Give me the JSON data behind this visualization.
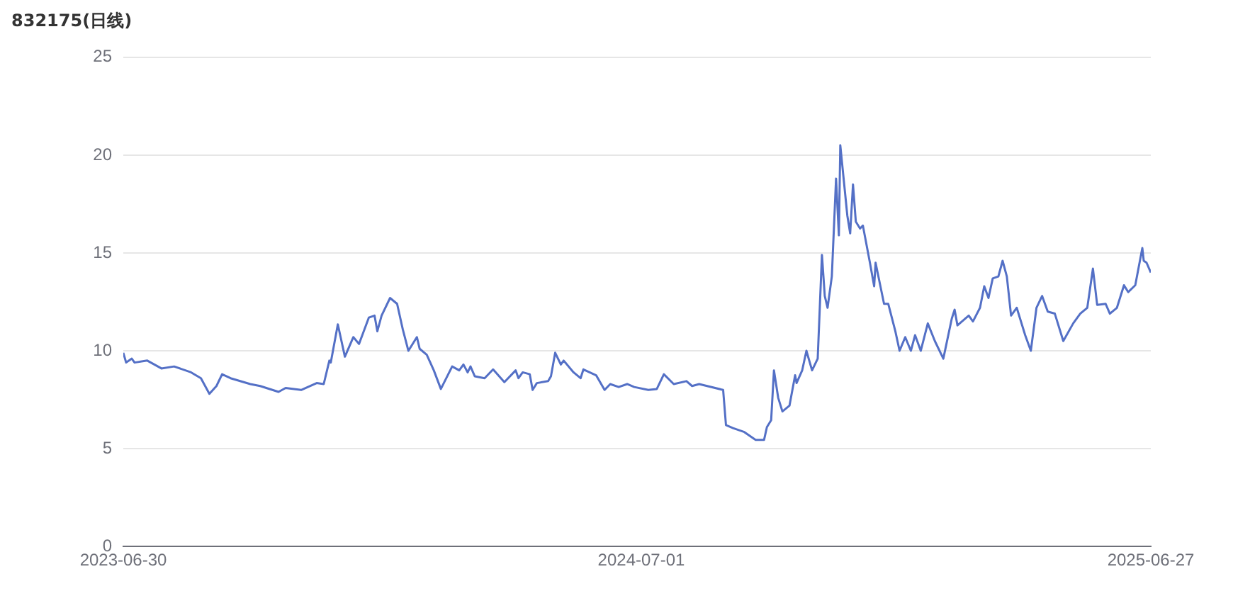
{
  "chart_data": {
    "type": "line",
    "title": "832175(日线)",
    "x": [
      "2023-06-30",
      "2023-07-02",
      "2023-07-06",
      "2023-07-08",
      "2023-07-17",
      "2023-07-27",
      "2023-08-05",
      "2023-08-17",
      "2023-08-24",
      "2023-08-30",
      "2023-09-04",
      "2023-09-08",
      "2023-09-14",
      "2023-09-28",
      "2023-10-05",
      "2023-10-18",
      "2023-10-23",
      "2023-11-03",
      "2023-11-14",
      "2023-11-19",
      "2023-11-23",
      "2023-11-24",
      "2023-11-29",
      "2023-12-04",
      "2023-12-10",
      "2023-12-14",
      "2023-12-21",
      "2023-12-25",
      "2023-12-27",
      "2023-12-30",
      "2024-01-05",
      "2024-01-10",
      "2024-01-14",
      "2024-01-18",
      "2024-01-24",
      "2024-01-26",
      "2024-01-31",
      "2024-02-05",
      "2024-02-10",
      "2024-02-18",
      "2024-02-23",
      "2024-02-26",
      "2024-02-29",
      "2024-03-02",
      "2024-03-05",
      "2024-03-12",
      "2024-03-18",
      "2024-03-26",
      "2024-04-03",
      "2024-04-05",
      "2024-04-08",
      "2024-04-13",
      "2024-04-15",
      "2024-04-18",
      "2024-04-26",
      "2024-04-28",
      "2024-05-01",
      "2024-05-05",
      "2024-05-07",
      "2024-05-14",
      "2024-05-19",
      "2024-05-21",
      "2024-05-30",
      "2024-06-05",
      "2024-06-09",
      "2024-06-15",
      "2024-06-21",
      "2024-06-26",
      "2024-07-06",
      "2024-07-12",
      "2024-07-17",
      "2024-07-24",
      "2024-08-02",
      "2024-08-06",
      "2024-08-11",
      "2024-08-28",
      "2024-08-30",
      "2024-09-04",
      "2024-09-12",
      "2024-09-20",
      "2024-09-26",
      "2024-09-28",
      "2024-10-01",
      "2024-10-03",
      "2024-10-06",
      "2024-10-09",
      "2024-10-14",
      "2024-10-18",
      "2024-10-19",
      "2024-10-23",
      "2024-10-26",
      "2024-10-30",
      "2024-11-03",
      "2024-11-06",
      "2024-11-08",
      "2024-11-10",
      "2024-11-13",
      "2024-11-16",
      "2024-11-18",
      "2024-11-19",
      "2024-11-24",
      "2024-11-26",
      "2024-11-28",
      "2024-11-30",
      "2024-12-03",
      "2024-12-05",
      "2024-12-10",
      "2024-12-13",
      "2024-12-14",
      "2024-12-20",
      "2024-12-23",
      "2024-12-28",
      "2024-12-31",
      "2025-01-04",
      "2025-01-08",
      "2025-01-11",
      "2025-01-15",
      "2025-01-20",
      "2025-01-25",
      "2025-01-31",
      "2025-02-06",
      "2025-02-08",
      "2025-02-10",
      "2025-02-18",
      "2025-02-21",
      "2025-02-26",
      "2025-03-01",
      "2025-03-04",
      "2025-03-07",
      "2025-03-11",
      "2025-03-14",
      "2025-03-17",
      "2025-03-20",
      "2025-03-24",
      "2025-03-30",
      "2025-04-03",
      "2025-04-07",
      "2025-04-11",
      "2025-04-15",
      "2025-04-20",
      "2025-04-26",
      "2025-05-03",
      "2025-05-08",
      "2025-05-13",
      "2025-05-17",
      "2025-05-20",
      "2025-05-26",
      "2025-05-29",
      "2025-06-03",
      "2025-06-08",
      "2025-06-11",
      "2025-06-16",
      "2025-06-21",
      "2025-06-22",
      "2025-06-24",
      "2025-06-27"
    ],
    "series": [
      {
        "color": "#5470c6",
        "values": [
          9.9,
          9.4,
          9.6,
          9.4,
          9.5,
          9.1,
          9.2,
          8.9,
          8.6,
          7.8,
          8.2,
          8.8,
          8.6,
          8.3,
          8.2,
          7.9,
          8.1,
          8.0,
          8.35,
          8.3,
          9.5,
          9.4,
          11.35,
          9.7,
          10.7,
          10.35,
          11.7,
          11.8,
          11.0,
          11.8,
          12.7,
          12.4,
          11.1,
          10.0,
          10.7,
          10.1,
          9.8,
          9.0,
          8.05,
          9.2,
          9.0,
          9.3,
          8.9,
          9.2,
          8.7,
          8.6,
          9.05,
          8.4,
          9.0,
          8.6,
          8.9,
          8.8,
          8.0,
          8.35,
          8.45,
          8.7,
          9.9,
          9.3,
          9.5,
          8.9,
          8.6,
          9.05,
          8.75,
          8.0,
          8.3,
          8.15,
          8.3,
          8.15,
          8.0,
          8.05,
          8.8,
          8.3,
          8.45,
          8.2,
          8.3,
          8.0,
          6.2,
          6.05,
          5.85,
          5.45,
          5.45,
          6.1,
          6.45,
          9.0,
          7.6,
          6.9,
          7.2,
          8.75,
          8.35,
          9.0,
          10.0,
          9.0,
          9.6,
          14.9,
          12.8,
          12.2,
          13.8,
          18.8,
          15.9,
          20.5,
          16.9,
          16.0,
          18.5,
          16.6,
          16.25,
          16.4,
          14.5,
          13.3,
          14.5,
          12.4,
          12.4,
          11.0,
          10.0,
          10.7,
          10.0,
          10.8,
          10.0,
          11.4,
          10.5,
          9.6,
          11.65,
          12.1,
          11.3,
          11.8,
          11.5,
          12.2,
          13.3,
          12.7,
          13.7,
          13.8,
          14.6,
          13.8,
          11.8,
          12.2,
          10.8,
          10.0,
          12.2,
          12.8,
          12.0,
          11.9,
          10.5,
          11.4,
          11.9,
          12.2,
          14.2,
          12.35,
          12.4,
          11.9,
          12.2,
          13.35,
          13.0,
          13.35,
          15.25,
          14.6,
          14.5,
          14.0
        ]
      }
    ],
    "xlim": [
      "2023-06-30",
      "2025-06-27"
    ],
    "xticks": [
      "2023-06-30",
      "2024-07-01",
      "2025-06-27"
    ],
    "ylim": [
      0,
      25
    ],
    "yticks": [
      0,
      5,
      10,
      15,
      20,
      25
    ],
    "grid": "y",
    "legend": false
  }
}
